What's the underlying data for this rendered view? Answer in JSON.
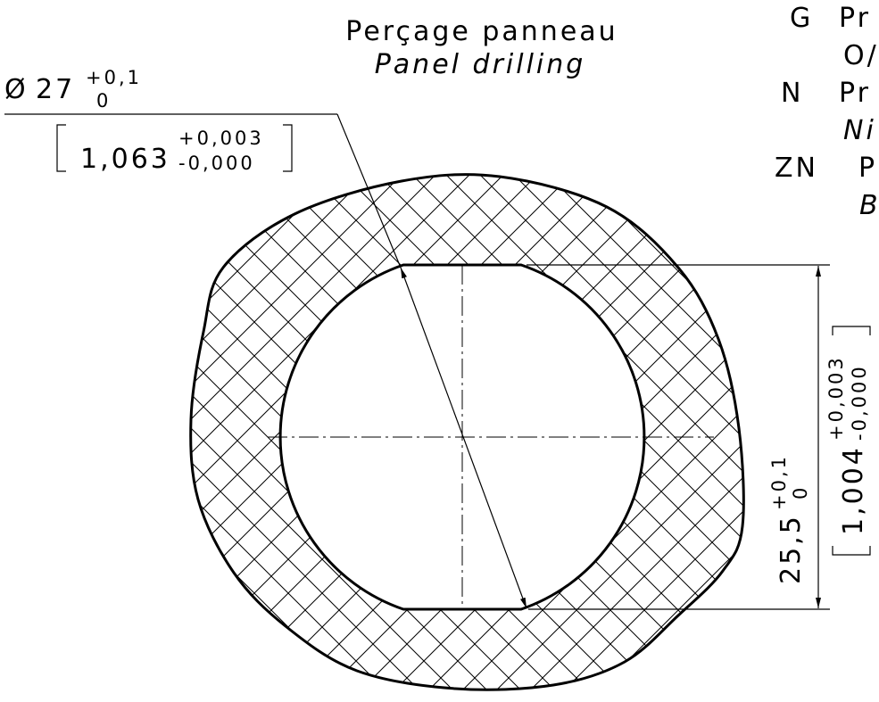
{
  "title": {
    "fr": "Perçage panneau",
    "en": "Panel drilling"
  },
  "diameter": {
    "symbol": "Ø",
    "value": "27",
    "upper": "+0,1",
    "lower": "0",
    "inch_value": "1,063",
    "inch_upper": "+0,003",
    "inch_lower": "-0,000"
  },
  "height": {
    "value": "25,5",
    "upper": "+0,1",
    "lower": "0",
    "inch_value": "1,004",
    "inch_upper": "+0,003",
    "inch_lower": "-0,000"
  },
  "legend": [
    {
      "code": "G",
      "text": "Pr",
      "sub": "O/"
    },
    {
      "code": "N",
      "text": "Pr",
      "sub": "Ni"
    },
    {
      "code": "ZN",
      "text": "P",
      "sub": "B"
    }
  ]
}
